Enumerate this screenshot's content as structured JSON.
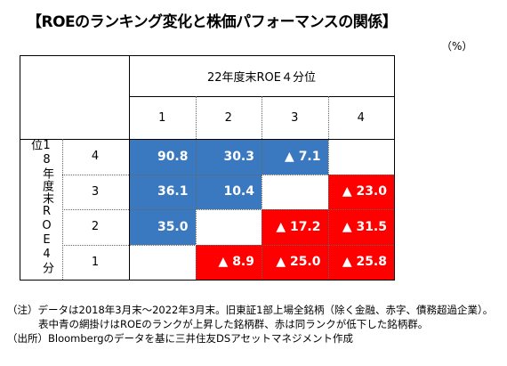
{
  "title": "【ROEのランキング変化と株価パフォーマンスの関係】",
  "unit": "（%）",
  "colors": {
    "blue": "#3A78C0",
    "red": "#FF0000",
    "text_on_fill": "#FFFFFF"
  },
  "table": {
    "column_header": "22年度末ROE４分位",
    "row_header": "18年度末ROE4分位",
    "columns": [
      "1",
      "2",
      "3",
      "4"
    ],
    "rows": [
      "4",
      "3",
      "2",
      "1"
    ]
  },
  "chart_data": {
    "type": "table",
    "title": "【ROEのランキング変化と株価パフォーマンスの関係】",
    "unit": "%",
    "col_axis": "22年度末ROE４分位",
    "row_axis": "18年度末ROE4分位",
    "columns": [
      "1",
      "2",
      "3",
      "4"
    ],
    "rows": [
      "4",
      "3",
      "2",
      "1"
    ],
    "cells": [
      [
        {
          "label": "90.8",
          "value": 90.8,
          "fill": "blue"
        },
        {
          "label": "30.3",
          "value": 30.3,
          "fill": "blue"
        },
        {
          "label": "▲ 7.1",
          "value": -7.1,
          "fill": "blue"
        },
        {
          "label": "",
          "value": null,
          "fill": "none"
        }
      ],
      [
        {
          "label": "36.1",
          "value": 36.1,
          "fill": "blue"
        },
        {
          "label": "10.4",
          "value": 10.4,
          "fill": "blue"
        },
        {
          "label": "",
          "value": null,
          "fill": "none"
        },
        {
          "label": "▲ 23.0",
          "value": -23.0,
          "fill": "red"
        }
      ],
      [
        {
          "label": "35.0",
          "value": 35.0,
          "fill": "blue"
        },
        {
          "label": "",
          "value": null,
          "fill": "none"
        },
        {
          "label": "▲ 17.2",
          "value": -17.2,
          "fill": "red"
        },
        {
          "label": "▲ 31.5",
          "value": -31.5,
          "fill": "red"
        }
      ],
      [
        {
          "label": "",
          "value": null,
          "fill": "none"
        },
        {
          "label": "▲ 8.9",
          "value": -8.9,
          "fill": "red"
        },
        {
          "label": "▲ 25.0",
          "value": -25.0,
          "fill": "red"
        },
        {
          "label": "▲ 25.8",
          "value": -25.8,
          "fill": "red"
        }
      ]
    ]
  },
  "notes": {
    "line1": "（注）データは2018年3月末～2022年3月末。旧東証1部上場全銘柄（除く金融、赤字、債務超過企業）。",
    "line2": "表中青の網掛けはROEのランクが上昇した銘柄群、赤は同ランクが低下した銘柄群。",
    "line3": "（出所）Bloombergのデータを基に三井住友DSアセットマネジメント作成"
  }
}
